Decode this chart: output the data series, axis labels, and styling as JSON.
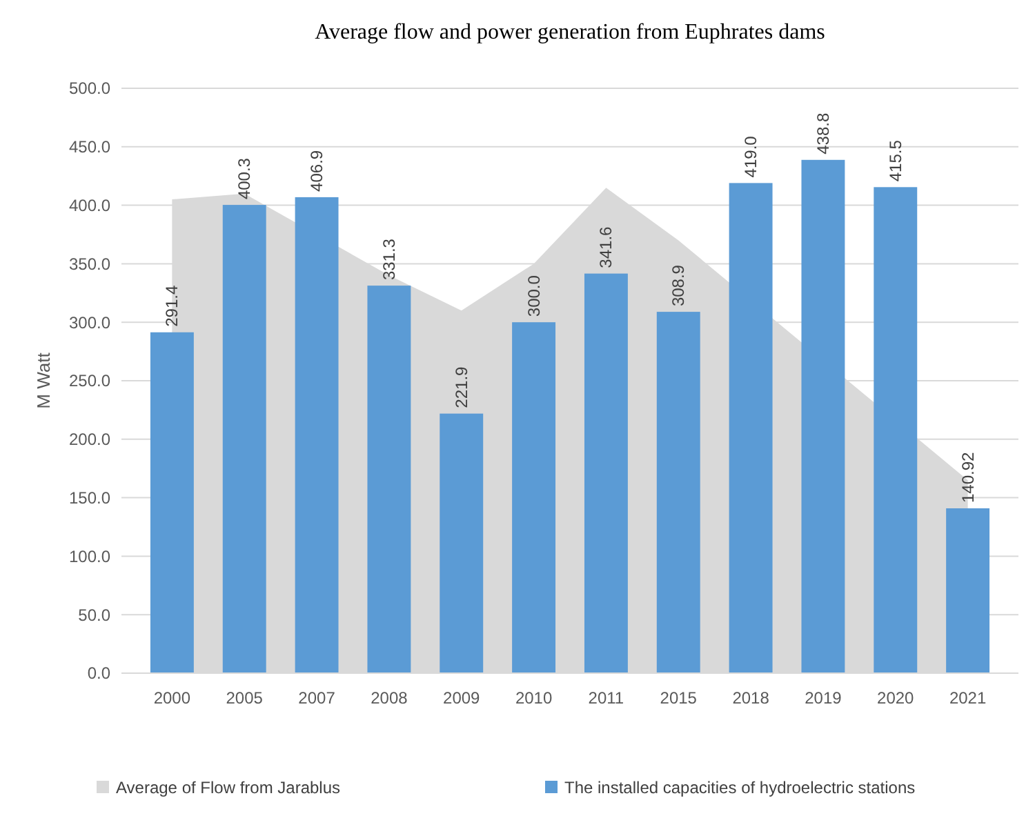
{
  "chart_data": {
    "type": "bar",
    "title": "Average flow and power generation from Euphrates dams",
    "ylabel": "M Watt",
    "categories": [
      "2000",
      "2005",
      "2007",
      "2008",
      "2009",
      "2010",
      "2011",
      "2015",
      "2018",
      "2019",
      "2020",
      "2021"
    ],
    "series": [
      {
        "name": "Average of Flow from Jarablus",
        "type": "area",
        "color": "#d9d9d9",
        "values": [
          405,
          410,
          null,
          340,
          310,
          350,
          415,
          370,
          null,
          null,
          null,
          165
        ]
      },
      {
        "name": "The installed capacities of hydroelectric stations",
        "color": "#5b9bd5",
        "values": [
          291.4,
          400.3,
          406.9,
          331.3,
          221.9,
          300.0,
          341.6,
          308.9,
          419.0,
          438.8,
          415.5,
          140.92
        ],
        "value_labels": [
          "291.4",
          "400.3",
          "406.9",
          "331.3",
          "221.9",
          "300.0",
          "341.6",
          "308.9",
          "419.0",
          "438.8",
          "415.5",
          "140.92"
        ]
      }
    ],
    "ylim": [
      0,
      500
    ],
    "yticks": [
      {
        "value": 0,
        "label": "0.0"
      },
      {
        "value": 50,
        "label": "50.0"
      },
      {
        "value": 100,
        "label": "100.0"
      },
      {
        "value": 150,
        "label": "150.0"
      },
      {
        "value": 200,
        "label": "200.0"
      },
      {
        "value": 250,
        "label": "250.0"
      },
      {
        "value": 300,
        "label": "300.0"
      },
      {
        "value": 350,
        "label": "350.0"
      },
      {
        "value": 400,
        "label": "400.0"
      },
      {
        "value": 450,
        "label": "450.0"
      },
      {
        "value": 500,
        "label": "500.0"
      }
    ],
    "grid": "y",
    "legend": "bottom"
  }
}
